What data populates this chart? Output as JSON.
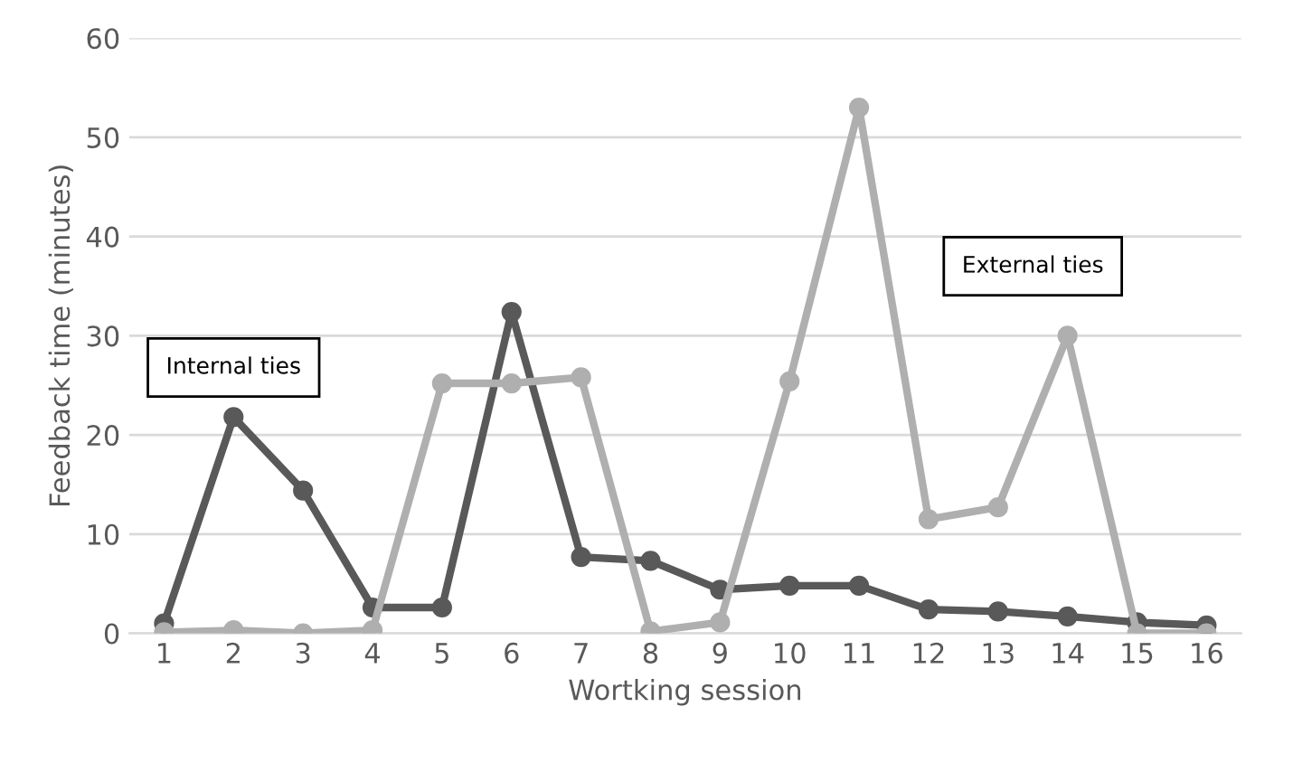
{
  "chart_data": {
    "type": "line",
    "xlabel": "Wortking session",
    "ylabel": "Feedback time (minutes)",
    "categories": [
      "1",
      "2",
      "3",
      "4",
      "5",
      "6",
      "7",
      "8",
      "9",
      "10",
      "11",
      "12",
      "13",
      "14",
      "15",
      "16"
    ],
    "series": [
      {
        "name": "Internal ties",
        "color": "#595959",
        "values": [
          1,
          21.8,
          14.4,
          2.6,
          2.6,
          32.4,
          7.7,
          7.3,
          4.4,
          4.8,
          4.8,
          2.4,
          2.2,
          1.7,
          1.1,
          0.8
        ]
      },
      {
        "name": "External ties",
        "color": "#afafaf",
        "values": [
          0.1,
          0.3,
          0,
          0.3,
          25.2,
          25.2,
          25.8,
          0.2,
          1.1,
          25.4,
          53,
          11.5,
          12.7,
          30,
          0,
          0
        ]
      }
    ],
    "ylim": [
      0,
      60
    ],
    "yticks": [
      0,
      10,
      20,
      30,
      40,
      50,
      60
    ],
    "grid": "y",
    "marker": "circle",
    "line_style": "solid",
    "legend": false
  }
}
